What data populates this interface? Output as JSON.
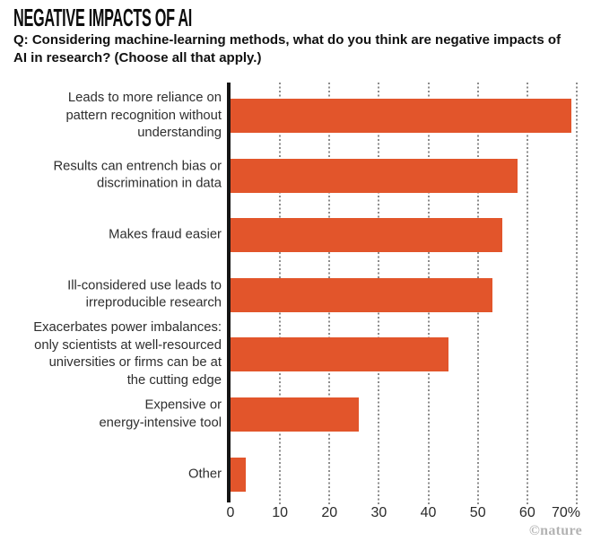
{
  "header": {
    "title": "NEGATIVE IMPACTS OF AI",
    "question": "Q: Considering machine-learning methods, what do you think are negative impacts of\nAI in research? (Choose all that apply.)"
  },
  "chart_data": {
    "type": "bar",
    "orientation": "horizontal",
    "title": "NEGATIVE IMPACTS OF AI",
    "subtitle": "Q: Considering machine-learning methods, what do you think are negative impacts of AI in research? (Choose all that apply.)",
    "categories": [
      "Leads to more reliance on\npattern recognition without\nunderstanding",
      "Results can entrench bias or\ndiscrimination in data",
      "Makes fraud easier",
      "Ill-considered use leads to\nirreproducible research",
      "Exacerbates power imbalances:\nonly scientists at well-resourced\nuniversities or firms can be at\nthe cutting edge",
      "Expensive or\nenergy-intensive tool",
      "Other"
    ],
    "values": [
      69,
      58,
      55,
      53,
      44,
      26,
      3
    ],
    "unit": "%",
    "xlabel": "",
    "ylabel": "",
    "xlim": [
      0,
      70
    ],
    "x_tick_labels": [
      "0",
      "10",
      "20",
      "30",
      "40",
      "50",
      "60",
      "70%"
    ],
    "x_tick_values": [
      0,
      10,
      20,
      30,
      40,
      50,
      60,
      70
    ],
    "grid": "vertical-dotted",
    "legend_position": "none",
    "colors": {
      "bar": "#E2552B",
      "axis": "#141414",
      "grid": "#8C8C8C",
      "category_text": "#2E2E2E",
      "tick_text": "#2A2A2A"
    }
  },
  "footer": {
    "credit": "©nature"
  }
}
